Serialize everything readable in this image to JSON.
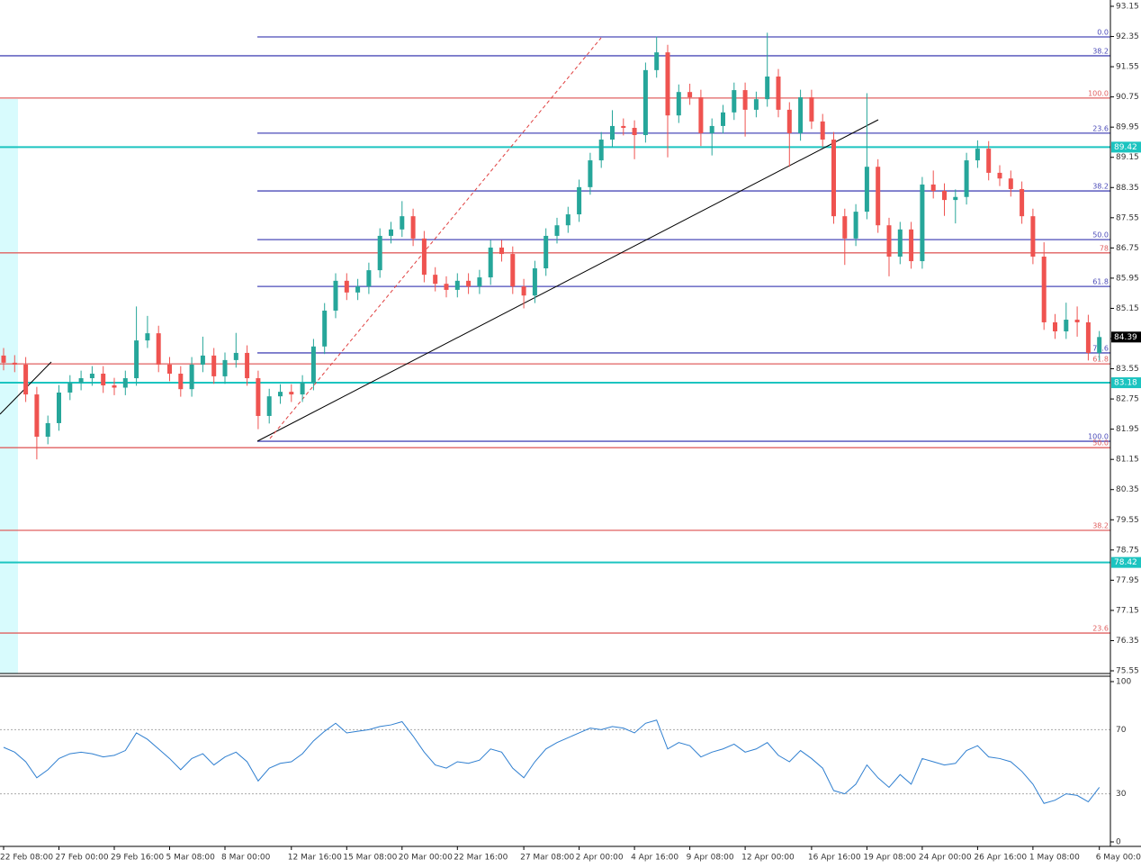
{
  "chart_data": {
    "type": "candlestick",
    "up_color": "#26a69a",
    "down_color": "#ef5350",
    "ylim": [
      75.55,
      93.15
    ],
    "yticks": [
      93.15,
      92.35,
      91.55,
      90.75,
      89.95,
      89.15,
      88.35,
      87.55,
      86.75,
      85.95,
      85.15,
      84.35,
      83.55,
      82.75,
      81.95,
      81.15,
      80.35,
      79.55,
      78.75,
      77.95,
      77.15,
      76.35,
      75.55
    ],
    "categories": [
      "22 Feb 08:00",
      null,
      null,
      null,
      null,
      "27 Feb 00:00",
      null,
      null,
      null,
      null,
      "29 Feb 16:00",
      null,
      null,
      null,
      null,
      "5 Mar 08:00",
      null,
      null,
      null,
      null,
      "8 Mar 00:00",
      null,
      null,
      null,
      null,
      null,
      "12 Mar 16:00",
      null,
      null,
      null,
      null,
      "15 Mar 08:00",
      null,
      null,
      null,
      null,
      "20 Mar 00:00",
      null,
      null,
      null,
      null,
      "22 Mar 16:00",
      null,
      null,
      null,
      null,
      null,
      "27 Mar 08:00",
      null,
      null,
      null,
      null,
      "2 Apr 00:00",
      null,
      null,
      null,
      null,
      "4 Apr 16:00",
      null,
      null,
      null,
      null,
      "9 Apr 08:00",
      null,
      null,
      null,
      null,
      "12 Apr 00:00",
      null,
      null,
      null,
      null,
      null,
      "16 Apr 16:00",
      null,
      null,
      null,
      null,
      "19 Apr 08:00",
      null,
      null,
      null,
      null,
      "24 Apr 00:00",
      null,
      null,
      null,
      null,
      "26 Apr 16:00",
      null,
      null,
      null,
      null,
      "1 May 08:00",
      null,
      null,
      null,
      null,
      null,
      "6 May 00:00"
    ],
    "ohlc": [
      [
        83.9,
        84.1,
        83.51,
        83.71
      ],
      [
        83.71,
        83.91,
        83.46,
        83.66
      ],
      [
        83.66,
        83.86,
        82.67,
        82.87
      ],
      [
        82.87,
        83.07,
        81.15,
        81.75
      ],
      [
        81.75,
        82.31,
        81.55,
        82.11
      ],
      [
        82.11,
        83.12,
        81.91,
        82.92
      ],
      [
        82.92,
        83.38,
        82.72,
        83.18
      ],
      [
        83.18,
        83.5,
        82.98,
        83.3
      ],
      [
        83.3,
        83.62,
        83.1,
        83.42
      ],
      [
        83.42,
        83.62,
        82.91,
        83.11
      ],
      [
        83.11,
        83.31,
        82.85,
        83.05
      ],
      [
        83.05,
        83.5,
        82.85,
        83.3
      ],
      [
        83.3,
        85.2,
        83.1,
        84.3
      ],
      [
        84.3,
        84.95,
        84.1,
        84.49
      ],
      [
        84.49,
        84.69,
        83.46,
        83.66
      ],
      [
        83.66,
        83.86,
        83.22,
        83.42
      ],
      [
        83.42,
        83.62,
        82.81,
        83.01
      ],
      [
        83.01,
        83.86,
        82.81,
        83.66
      ],
      [
        83.66,
        84.4,
        83.46,
        83.9
      ],
      [
        83.9,
        84.1,
        83.15,
        83.35
      ],
      [
        83.35,
        83.98,
        83.15,
        83.78
      ],
      [
        83.78,
        84.5,
        83.58,
        83.97
      ],
      [
        83.97,
        84.17,
        83.1,
        83.3
      ],
      [
        83.3,
        83.5,
        81.95,
        82.3
      ],
      [
        82.3,
        83.02,
        82.1,
        82.82
      ],
      [
        82.82,
        83.14,
        82.62,
        82.94
      ],
      [
        82.94,
        83.14,
        82.67,
        82.87
      ],
      [
        82.87,
        83.38,
        82.67,
        83.18
      ],
      [
        83.18,
        84.34,
        82.98,
        84.14
      ],
      [
        84.14,
        85.29,
        83.94,
        85.09
      ],
      [
        85.09,
        86.08,
        84.89,
        85.88
      ],
      [
        85.88,
        86.08,
        85.37,
        85.57
      ],
      [
        85.57,
        85.93,
        85.37,
        85.73
      ],
      [
        85.73,
        86.36,
        85.53,
        86.16
      ],
      [
        86.16,
        87.27,
        85.96,
        87.07
      ],
      [
        87.07,
        87.44,
        86.87,
        87.24
      ],
      [
        87.24,
        87.99,
        87.04,
        87.59
      ],
      [
        87.59,
        87.79,
        86.8,
        87.0
      ],
      [
        87.0,
        87.2,
        85.84,
        86.04
      ],
      [
        86.04,
        86.24,
        85.6,
        85.8
      ],
      [
        85.8,
        86.0,
        85.44,
        85.64
      ],
      [
        85.64,
        86.08,
        85.44,
        85.88
      ],
      [
        85.88,
        86.08,
        85.53,
        85.73
      ],
      [
        85.73,
        86.17,
        85.53,
        85.97
      ],
      [
        85.97,
        86.96,
        85.77,
        86.76
      ],
      [
        86.76,
        86.96,
        86.39,
        86.59
      ],
      [
        86.59,
        86.79,
        85.53,
        85.73
      ],
      [
        85.73,
        85.93,
        85.15,
        85.49
      ],
      [
        85.49,
        86.41,
        85.29,
        86.21
      ],
      [
        86.21,
        87.27,
        86.01,
        87.07
      ],
      [
        87.07,
        87.55,
        86.87,
        87.35
      ],
      [
        87.35,
        87.84,
        87.15,
        87.64
      ],
      [
        87.64,
        88.56,
        87.44,
        88.36
      ],
      [
        88.36,
        89.27,
        88.16,
        89.07
      ],
      [
        89.07,
        89.82,
        88.87,
        89.62
      ],
      [
        89.62,
        90.4,
        89.42,
        89.98
      ],
      [
        89.98,
        90.18,
        89.73,
        89.93
      ],
      [
        89.93,
        90.13,
        89.1,
        89.74
      ],
      [
        89.74,
        91.66,
        89.54,
        91.46
      ],
      [
        91.46,
        92.35,
        91.26,
        91.93
      ],
      [
        91.93,
        92.13,
        89.15,
        90.26
      ],
      [
        90.26,
        91.08,
        90.06,
        90.88
      ],
      [
        90.88,
        91.1,
        90.54,
        90.74
      ],
      [
        90.74,
        90.94,
        89.45,
        89.79
      ],
      [
        89.79,
        90.18,
        89.2,
        89.98
      ],
      [
        89.98,
        90.54,
        89.78,
        90.34
      ],
      [
        90.34,
        91.13,
        90.14,
        90.93
      ],
      [
        90.93,
        91.13,
        89.7,
        90.41
      ],
      [
        90.41,
        90.89,
        90.21,
        90.69
      ],
      [
        90.69,
        92.45,
        90.49,
        91.29
      ],
      [
        91.29,
        91.49,
        90.21,
        90.41
      ],
      [
        90.41,
        90.61,
        88.9,
        89.79
      ],
      [
        89.79,
        90.94,
        89.59,
        90.74
      ],
      [
        90.74,
        90.94,
        89.9,
        90.1
      ],
      [
        90.1,
        90.3,
        89.42,
        89.62
      ],
      [
        89.62,
        89.82,
        87.39,
        87.59
      ],
      [
        87.59,
        87.79,
        86.3,
        87.0
      ],
      [
        87.0,
        87.91,
        86.8,
        87.71
      ],
      [
        87.71,
        90.85,
        87.51,
        88.9
      ],
      [
        88.9,
        89.1,
        87.15,
        87.35
      ],
      [
        87.35,
        87.55,
        86.0,
        86.52
      ],
      [
        86.52,
        87.44,
        86.32,
        87.24
      ],
      [
        87.24,
        87.44,
        86.2,
        86.4
      ],
      [
        86.4,
        88.63,
        86.2,
        88.43
      ],
      [
        88.43,
        88.8,
        88.06,
        88.26
      ],
      [
        88.26,
        88.46,
        87.6,
        88.02
      ],
      [
        88.02,
        88.3,
        87.4,
        88.1
      ],
      [
        88.1,
        89.27,
        87.9,
        89.07
      ],
      [
        89.07,
        89.6,
        88.87,
        89.38
      ],
      [
        89.38,
        89.58,
        88.54,
        88.74
      ],
      [
        88.74,
        88.94,
        88.39,
        88.59
      ],
      [
        88.59,
        88.8,
        88.11,
        88.31
      ],
      [
        88.31,
        88.51,
        87.39,
        87.59
      ],
      [
        87.59,
        87.79,
        86.32,
        86.52
      ],
      [
        86.52,
        86.9,
        84.58,
        84.78
      ],
      [
        84.78,
        85.0,
        84.34,
        84.54
      ],
      [
        84.54,
        85.3,
        84.34,
        84.85
      ],
      [
        84.85,
        85.2,
        84.4,
        84.78
      ],
      [
        84.78,
        84.98,
        83.77,
        83.97
      ],
      [
        83.97,
        84.55,
        83.77,
        84.39
      ]
    ],
    "fib_retracement": [
      {
        "value": 92.34,
        "label": "0.0",
        "color": "#4b4bb8"
      },
      {
        "value": 89.79,
        "label": "23.6",
        "color": "#4b4bb8"
      },
      {
        "value": 88.26,
        "label": "38.2",
        "color": "#4b4bb8"
      },
      {
        "value": 86.97,
        "label": "50.0",
        "color": "#4b4bb8"
      },
      {
        "value": 85.73,
        "label": "61.8",
        "color": "#4b4bb8"
      },
      {
        "value": 83.97,
        "label": "78.6",
        "color": "#4b4bb8"
      },
      {
        "value": 81.63,
        "label": "100.0",
        "color": "#4b4bb8"
      }
    ],
    "fib_levels": [
      {
        "value": 91.84,
        "label": "38.2",
        "color": "#4b4bb8"
      },
      {
        "value": 90.72,
        "label": "100.0",
        "color": "#e06060"
      },
      {
        "value": 86.62,
        "label": "78",
        "color": "#e06060"
      },
      {
        "value": 83.68,
        "label": "61.8",
        "color": "#e06060"
      },
      {
        "value": 81.46,
        "label": "50.0",
        "color": "#e06060"
      },
      {
        "value": 79.27,
        "label": "38.2",
        "color": "#e06060"
      },
      {
        "value": 76.55,
        "label": "23.6",
        "color": "#e06060"
      }
    ],
    "hlines": [
      89.42,
      83.18,
      78.42
    ],
    "hline_color": "#1cc4c0",
    "last_price": 84.39,
    "indicator": {
      "type": "line",
      "color": "#2f7fd0",
      "ylim": [
        0,
        100
      ],
      "yticks": [
        100,
        70,
        30,
        0
      ],
      "values": [
        59,
        56,
        50,
        40,
        45,
        52,
        55,
        56,
        55,
        53,
        54,
        57,
        68,
        64,
        58,
        52,
        45,
        52,
        55,
        48,
        53,
        56,
        50,
        38,
        46,
        49,
        50,
        55,
        63,
        69,
        74,
        68,
        69,
        70,
        72,
        73,
        75,
        66,
        56,
        48,
        46,
        50,
        49,
        51,
        58,
        56,
        46,
        40,
        50,
        58,
        62,
        65,
        68,
        71,
        70,
        72,
        71,
        68,
        74,
        76,
        58,
        62,
        60,
        53,
        56,
        58,
        61,
        56,
        58,
        62,
        54,
        50,
        57,
        52,
        46,
        32,
        30,
        36,
        48,
        40,
        34,
        42,
        36,
        52,
        50,
        48,
        49,
        57,
        60,
        53,
        52,
        50,
        44,
        36,
        24,
        26,
        30,
        29,
        25,
        34
      ]
    }
  }
}
